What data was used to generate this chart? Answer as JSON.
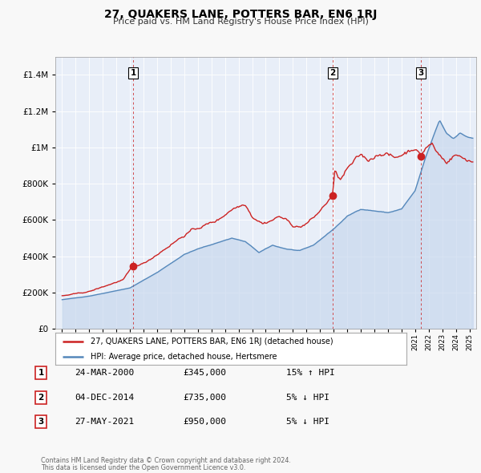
{
  "title": "27, QUAKERS LANE, POTTERS BAR, EN6 1RJ",
  "subtitle": "Price paid vs. HM Land Registry's House Price Index (HPI)",
  "red_label": "27, QUAKERS LANE, POTTERS BAR, EN6 1RJ (detached house)",
  "blue_label": "HPI: Average price, detached house, Hertsmere",
  "transactions": [
    {
      "num": 1,
      "date": "24-MAR-2000",
      "price": 345000,
      "pct": "15%",
      "dir": "↑",
      "rel": "HPI",
      "x": 2000.23
    },
    {
      "num": 2,
      "date": "04-DEC-2014",
      "price": 735000,
      "pct": "5%",
      "dir": "↓",
      "rel": "HPI",
      "x": 2014.92
    },
    {
      "num": 3,
      "date": "27-MAY-2021",
      "price": 950000,
      "pct": "5%",
      "dir": "↓",
      "rel": "HPI",
      "x": 2021.41
    }
  ],
  "footer1": "Contains HM Land Registry data © Crown copyright and database right 2024.",
  "footer2": "This data is licensed under the Open Government Licence v3.0.",
  "ylim": [
    0,
    1500000
  ],
  "yticks": [
    0,
    200000,
    400000,
    600000,
    800000,
    1000000,
    1200000,
    1400000
  ],
  "xlim_start": 1994.5,
  "xlim_end": 2025.5,
  "background": "#f0f4fa",
  "chart_bg": "#e8eef8",
  "grid_color": "#ffffff",
  "red_color": "#cc2222",
  "blue_color": "#5588bb",
  "blue_fill": "#c8d8ee",
  "vline_color": "#cc2222",
  "outer_bg": "#f8f8f8"
}
